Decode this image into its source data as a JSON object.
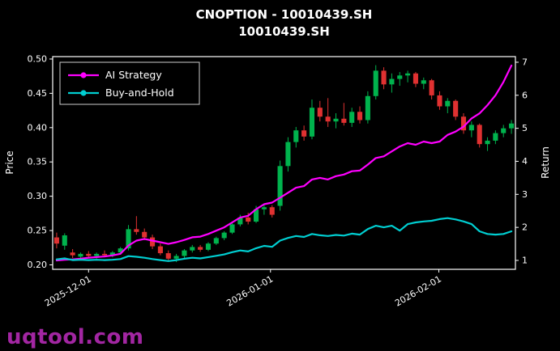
{
  "header": {
    "title": "CNOPTION - 10010439.SH",
    "subtitle": "10010439.SH"
  },
  "watermark": "uqtool.com",
  "chart_data": {
    "type": "candlestick+line",
    "title": "CNOPTION - 10010439.SH",
    "subtitle": "10010439.SH",
    "ylabel_left": "Price",
    "ylabel_right": "Return",
    "ylim_price": [
      0.2,
      0.5
    ],
    "yticks_price": [
      0.5,
      0.45,
      0.4,
      0.35,
      0.3,
      0.25,
      0.2
    ],
    "ylim_return": [
      1,
      7
    ],
    "yticks_return": [
      7,
      6,
      5,
      4,
      3,
      2,
      1
    ],
    "grid": false,
    "legend_position": "upper-left",
    "xticks": [
      {
        "label": "2025-12-01",
        "index": 4
      },
      {
        "label": "2026-01-01",
        "index": 26.8
      },
      {
        "label": "2026-02-01",
        "index": 47.9
      }
    ],
    "colors": {
      "up": "#00b34d",
      "down": "#e03131",
      "ai": "#ff00ff",
      "bh": "#00ced1",
      "axis": "#ffffff"
    },
    "dates": [
      "2025-11-25",
      "2025-11-26",
      "2025-11-27",
      "2025-11-28",
      "2025-12-01",
      "2025-12-02",
      "2025-12-03",
      "2025-12-04",
      "2025-12-05",
      "2025-12-08",
      "2025-12-09",
      "2025-12-10",
      "2025-12-11",
      "2025-12-12",
      "2025-12-15",
      "2025-12-16",
      "2025-12-17",
      "2025-12-18",
      "2025-12-19",
      "2025-12-22",
      "2025-12-23",
      "2025-12-24",
      "2025-12-25",
      "2025-12-26",
      "2025-12-29",
      "2025-12-30",
      "2025-12-31",
      "2026-01-02",
      "2026-01-05",
      "2026-01-06",
      "2026-01-07",
      "2026-01-08",
      "2026-01-09",
      "2026-01-12",
      "2026-01-13",
      "2026-01-14",
      "2026-01-15",
      "2026-01-16",
      "2026-01-19",
      "2026-01-20",
      "2026-01-21",
      "2026-01-22",
      "2026-01-23",
      "2026-01-26",
      "2026-01-27",
      "2026-01-28",
      "2026-01-29",
      "2026-01-30",
      "2026-02-02",
      "2026-02-03",
      "2026-02-04",
      "2026-02-05",
      "2026-02-06",
      "2026-02-09",
      "2026-02-10",
      "2026-02-11",
      "2026-02-12",
      "2026-02-13"
    ],
    "candles": {
      "ohlc": [
        [
          0.24,
          0.247,
          0.224,
          0.231
        ],
        [
          0.228,
          0.246,
          0.222,
          0.243
        ],
        [
          0.218,
          0.223,
          0.21,
          0.214
        ],
        [
          0.212,
          0.218,
          0.208,
          0.216
        ],
        [
          0.216,
          0.22,
          0.211,
          0.213
        ],
        [
          0.213,
          0.218,
          0.209,
          0.216
        ],
        [
          0.216,
          0.221,
          0.212,
          0.214
        ],
        [
          0.214,
          0.22,
          0.211,
          0.218
        ],
        [
          0.218,
          0.226,
          0.215,
          0.224
        ],
        [
          0.224,
          0.258,
          0.221,
          0.252
        ],
        [
          0.252,
          0.271,
          0.244,
          0.248
        ],
        [
          0.248,
          0.253,
          0.236,
          0.24
        ],
        [
          0.24,
          0.244,
          0.223,
          0.227
        ],
        [
          0.227,
          0.231,
          0.214,
          0.217
        ],
        [
          0.217,
          0.221,
          0.205,
          0.209
        ],
        [
          0.209,
          0.216,
          0.204,
          0.213
        ],
        [
          0.213,
          0.223,
          0.21,
          0.221
        ],
        [
          0.221,
          0.229,
          0.218,
          0.226
        ],
        [
          0.226,
          0.229,
          0.219,
          0.222
        ],
        [
          0.222,
          0.233,
          0.22,
          0.231
        ],
        [
          0.231,
          0.241,
          0.229,
          0.239
        ],
        [
          0.239,
          0.249,
          0.236,
          0.247
        ],
        [
          0.247,
          0.263,
          0.245,
          0.259
        ],
        [
          0.259,
          0.273,
          0.256,
          0.269
        ],
        [
          0.269,
          0.276,
          0.259,
          0.263
        ],
        [
          0.263,
          0.286,
          0.261,
          0.281
        ],
        [
          0.281,
          0.288,
          0.273,
          0.284
        ],
        [
          0.284,
          0.287,
          0.269,
          0.273
        ],
        [
          0.286,
          0.352,
          0.279,
          0.344
        ],
        [
          0.344,
          0.386,
          0.336,
          0.379
        ],
        [
          0.379,
          0.401,
          0.371,
          0.396
        ],
        [
          0.396,
          0.403,
          0.381,
          0.387
        ],
        [
          0.387,
          0.441,
          0.383,
          0.429
        ],
        [
          0.429,
          0.439,
          0.409,
          0.416
        ],
        [
          0.416,
          0.443,
          0.401,
          0.409
        ],
        [
          0.409,
          0.421,
          0.399,
          0.413
        ],
        [
          0.413,
          0.436,
          0.403,
          0.407
        ],
        [
          0.407,
          0.429,
          0.401,
          0.423
        ],
        [
          0.423,
          0.431,
          0.406,
          0.411
        ],
        [
          0.411,
          0.453,
          0.406,
          0.446
        ],
        [
          0.446,
          0.491,
          0.441,
          0.483
        ],
        [
          0.483,
          0.488,
          0.456,
          0.463
        ],
        [
          0.463,
          0.479,
          0.451,
          0.471
        ],
        [
          0.471,
          0.481,
          0.461,
          0.476
        ],
        [
          0.476,
          0.483,
          0.466,
          0.479
        ],
        [
          0.479,
          0.481,
          0.459,
          0.464
        ],
        [
          0.464,
          0.473,
          0.456,
          0.469
        ],
        [
          0.469,
          0.471,
          0.441,
          0.447
        ],
        [
          0.447,
          0.453,
          0.426,
          0.431
        ],
        [
          0.431,
          0.443,
          0.421,
          0.439
        ],
        [
          0.439,
          0.441,
          0.411,
          0.416
        ],
        [
          0.416,
          0.421,
          0.391,
          0.396
        ],
        [
          0.396,
          0.409,
          0.386,
          0.404
        ],
        [
          0.404,
          0.406,
          0.371,
          0.376
        ],
        [
          0.376,
          0.386,
          0.366,
          0.381
        ],
        [
          0.381,
          0.396,
          0.376,
          0.392
        ],
        [
          0.392,
          0.404,
          0.386,
          0.399
        ],
        [
          0.399,
          0.411,
          0.391,
          0.406
        ]
      ]
    },
    "series": [
      {
        "name": "AI Strategy",
        "axis": "return",
        "color": "#ff00ff",
        "values": [
          1.0,
          1.02,
          1.03,
          1.05,
          1.08,
          1.1,
          1.12,
          1.15,
          1.2,
          1.45,
          1.6,
          1.65,
          1.6,
          1.55,
          1.5,
          1.55,
          1.62,
          1.7,
          1.72,
          1.8,
          1.9,
          2.0,
          2.15,
          2.3,
          2.35,
          2.55,
          2.7,
          2.75,
          2.9,
          3.05,
          3.2,
          3.25,
          3.45,
          3.5,
          3.45,
          3.55,
          3.6,
          3.7,
          3.72,
          3.9,
          4.1,
          4.15,
          4.3,
          4.45,
          4.55,
          4.5,
          4.6,
          4.55,
          4.6,
          4.8,
          4.9,
          5.05,
          5.3,
          5.45,
          5.7,
          6.0,
          6.4,
          6.9
        ]
      },
      {
        "name": "Buy-and-Hold",
        "axis": "return",
        "color": "#00ced1",
        "values": [
          1.03,
          1.06,
          1.01,
          1.02,
          1.01,
          1.02,
          1.01,
          1.02,
          1.04,
          1.13,
          1.11,
          1.08,
          1.04,
          1.01,
          0.98,
          1.01,
          1.05,
          1.08,
          1.06,
          1.1,
          1.14,
          1.18,
          1.25,
          1.3,
          1.27,
          1.37,
          1.44,
          1.41,
          1.6,
          1.68,
          1.74,
          1.71,
          1.8,
          1.76,
          1.74,
          1.77,
          1.75,
          1.81,
          1.78,
          1.95,
          2.05,
          2.0,
          2.05,
          1.9,
          2.1,
          2.15,
          2.18,
          2.2,
          2.25,
          2.28,
          2.24,
          2.18,
          2.1,
          1.88,
          1.8,
          1.78,
          1.8,
          1.88
        ]
      }
    ]
  }
}
